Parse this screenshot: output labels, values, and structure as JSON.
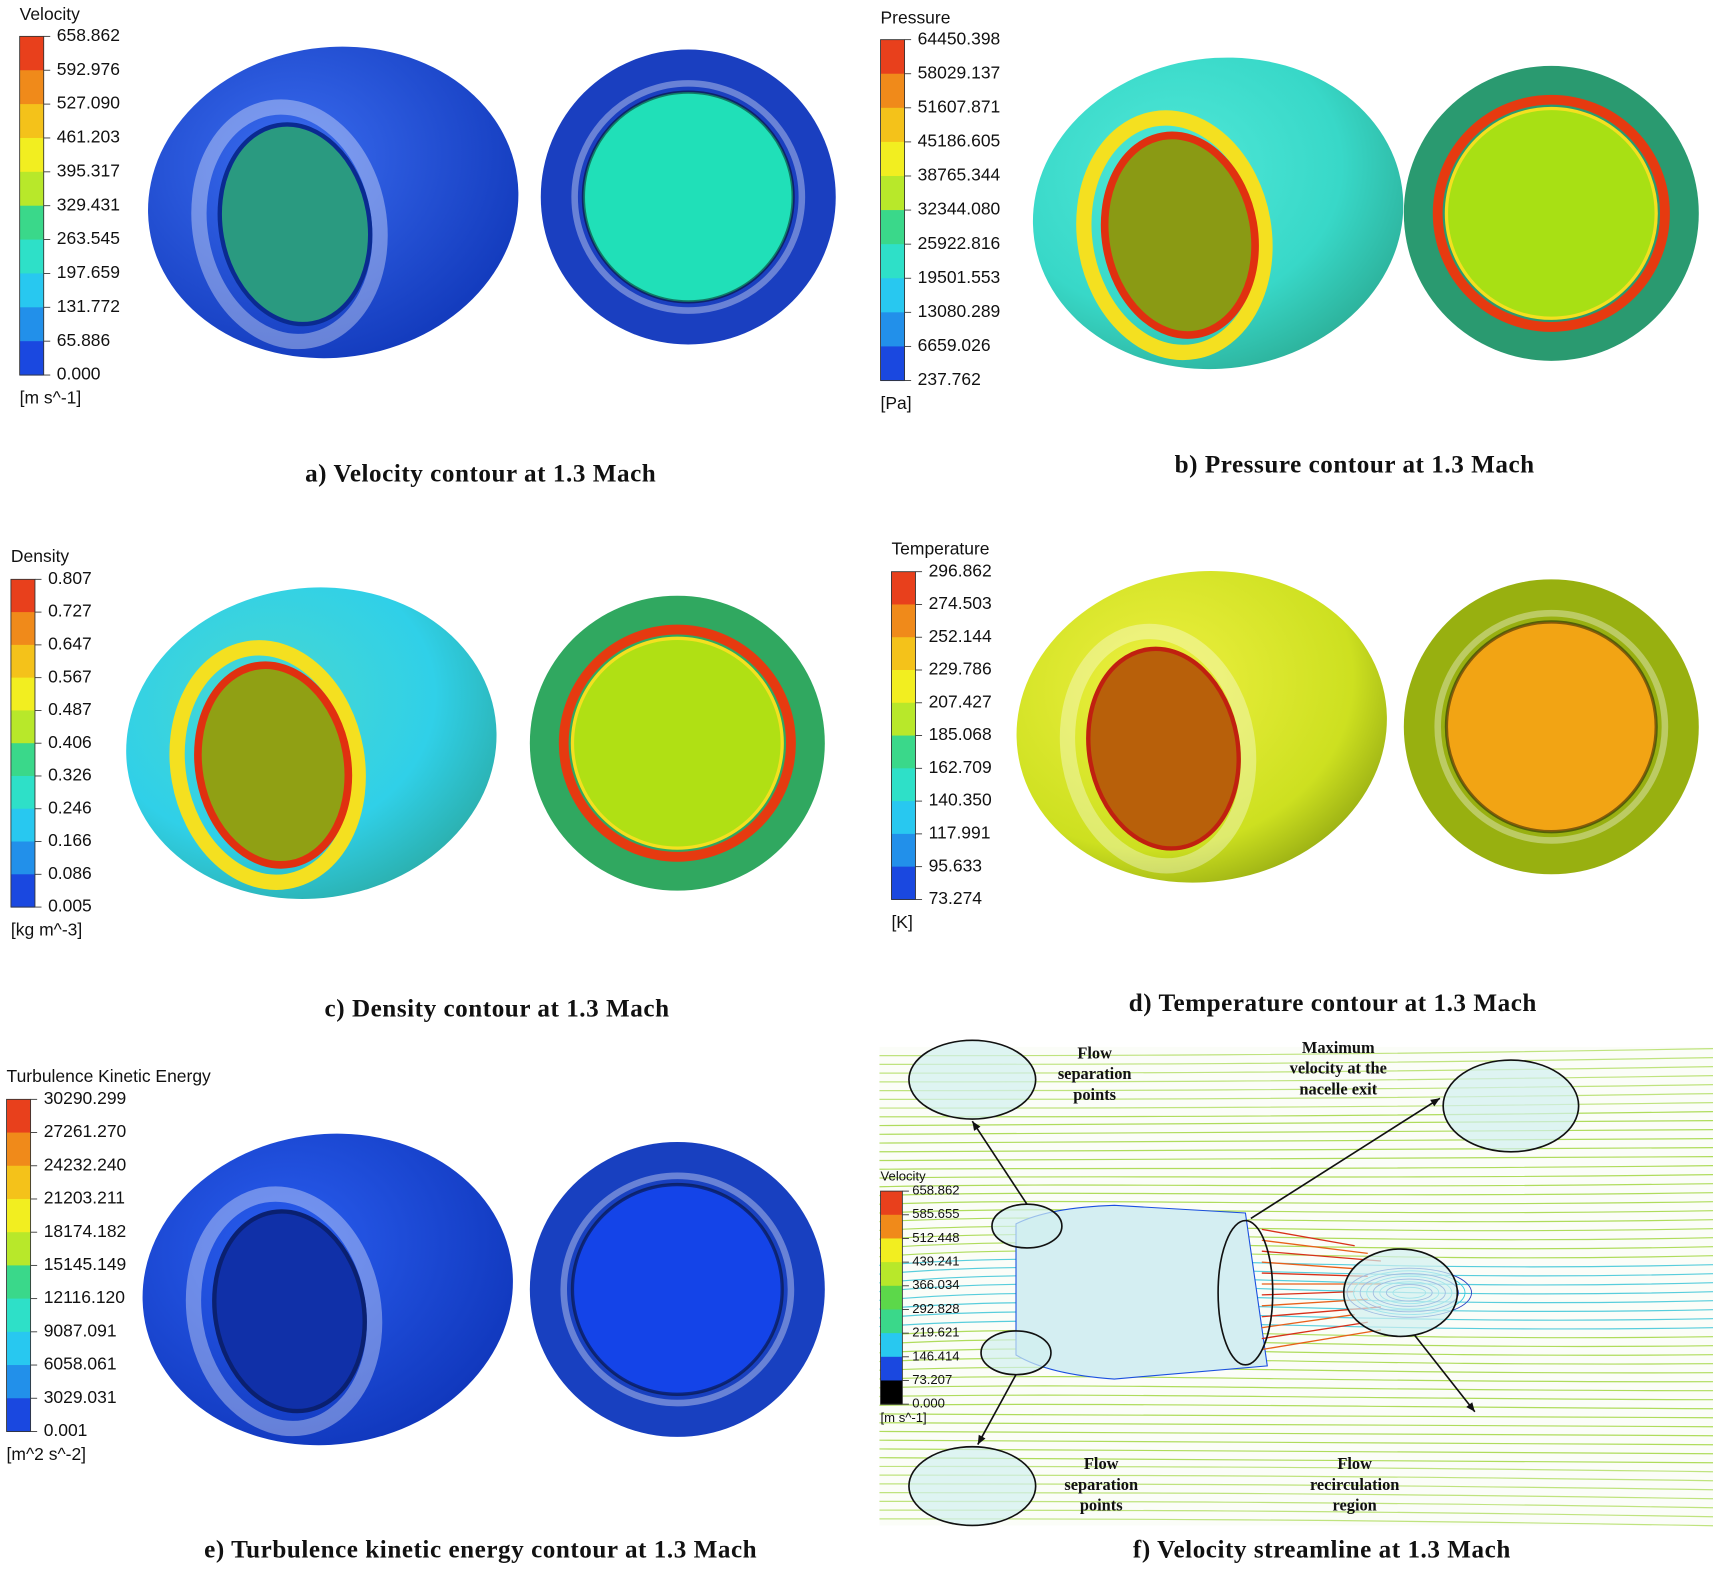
{
  "panels": [
    {
      "caption": "a)  Velocity contour at 1.3 Mach",
      "legend": {
        "title": "Velocity",
        "labels": [
          "658.862",
          "592.976",
          "527.090",
          "461.203",
          "395.317",
          "329.431",
          "263.545",
          "197.659",
          "131.772",
          "65.886",
          "0.000"
        ],
        "unit": "[m s^-1]"
      }
    },
    {
      "caption": "b)  Pressure contour at 1.3 Mach",
      "legend": {
        "title": "Pressure",
        "labels": [
          "64450.398",
          "58029.137",
          "51607.871",
          "45186.605",
          "38765.344",
          "32344.080",
          "25922.816",
          "19501.553",
          "13080.289",
          "6659.026",
          "237.762"
        ],
        "unit": "[Pa]"
      }
    },
    {
      "caption": "c)  Density contour at 1.3 Mach",
      "legend": {
        "title": "Density",
        "labels": [
          "0.807",
          "0.727",
          "0.647",
          "0.567",
          "0.487",
          "0.406",
          "0.326",
          "0.246",
          "0.166",
          "0.086",
          "0.005"
        ],
        "unit": "[kg m^-3]"
      }
    },
    {
      "caption": "d)  Temperature contour at 1.3 Mach",
      "legend": {
        "title": "Temperature",
        "labels": [
          "296.862",
          "274.503",
          "252.144",
          "229.786",
          "207.427",
          "185.068",
          "162.709",
          "140.350",
          "117.991",
          "95.633",
          "73.274"
        ],
        "unit": "[K]"
      }
    },
    {
      "caption": "e)  Turbulence kinetic energy contour at 1.3 Mach",
      "legend": {
        "title": "Turbulence Kinetic Energy",
        "labels": [
          "30290.299",
          "27261.270",
          "24232.240",
          "21203.211",
          "18174.182",
          "15145.149",
          "12116.120",
          "9087.091",
          "6058.061",
          "3029.031",
          "0.001"
        ],
        "unit": "[m^2 s^-2]"
      }
    },
    {
      "caption": "f)  Velocity streamline at 1.3 Mach",
      "legend": {
        "title": "Velocity",
        "labels": [
          "658.862",
          "585.655",
          "512.448",
          "439.241",
          "366.034",
          "292.828",
          "219.621",
          "146.414",
          "73.207",
          "0.000"
        ],
        "unit": "[m s^-1]"
      },
      "annotations": [
        {
          "lines": [
            "Flow",
            "separation",
            "points"
          ]
        },
        {
          "lines": [
            "Maximum",
            "velocity at the",
            "nacelle exit"
          ]
        },
        {
          "lines": [
            "Flow",
            "separation",
            "points"
          ]
        },
        {
          "lines": [
            "Flow",
            "recirculation",
            "region"
          ]
        }
      ]
    }
  ]
}
